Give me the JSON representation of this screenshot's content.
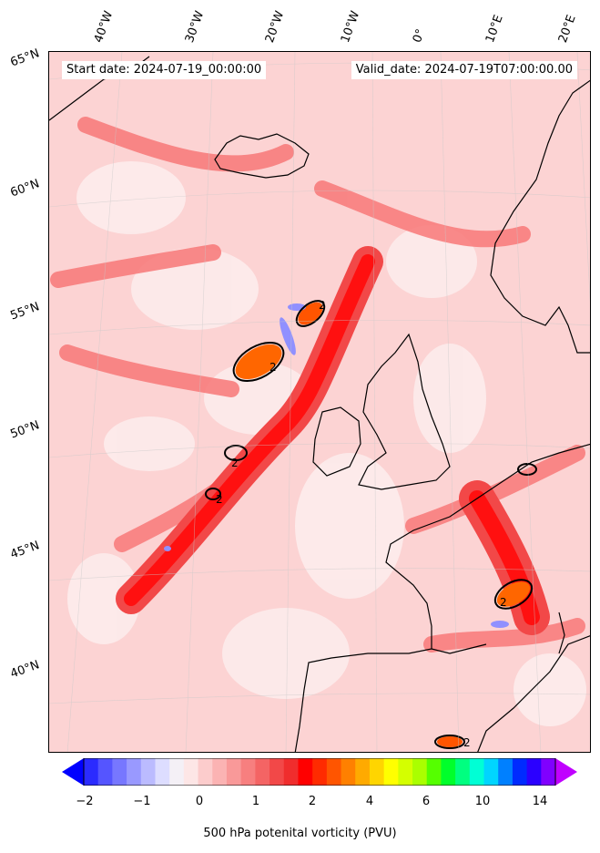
{
  "header": {
    "start_date": "Start date: 2024-07-19_00:00:00",
    "valid_date": "Valid_date: 2024-07-19T07:00:00.00"
  },
  "lon_labels": [
    "40°W",
    "30°W",
    "20°W",
    "10°W",
    "0°",
    "10°E",
    "20°E"
  ],
  "lat_labels": [
    "65°N",
    "60°N",
    "55°N",
    "50°N",
    "45°N",
    "40°N"
  ],
  "contour_labels": [
    "2",
    "2",
    "2",
    "2",
    "2",
    "2"
  ],
  "colorbar": {
    "ticks": [
      "−2",
      "−1",
      "0",
      "1",
      "2",
      "4",
      "6",
      "10",
      "14"
    ],
    "title": "500 hPa potenital vorticity (PVU)",
    "colors": [
      "#0000ff",
      "#2b2bff",
      "#5555ff",
      "#7777ff",
      "#9999ff",
      "#bbbbff",
      "#ddddff",
      "#f4f0f6",
      "#fde6e6",
      "#fccccc",
      "#fbb3b3",
      "#f99999",
      "#f77f7f",
      "#f46464",
      "#f24848",
      "#f02d2d",
      "#ff0000",
      "#ff2b00",
      "#ff5500",
      "#ff8000",
      "#ffaa00",
      "#ffd500",
      "#ffff00",
      "#d4ff00",
      "#aaff00",
      "#55ff00",
      "#00ff2b",
      "#00ff80",
      "#00ffd5",
      "#00d5ff",
      "#0080ff",
      "#002bff",
      "#2b00ff",
      "#8000ff",
      "#c000ff"
    ]
  },
  "colors": {
    "land_outline": "#000000",
    "background_pv": "#fde2e2",
    "strong_pv": "#ff3333",
    "max_pv": "#ff6600",
    "negative_pv": "#8888ff"
  }
}
